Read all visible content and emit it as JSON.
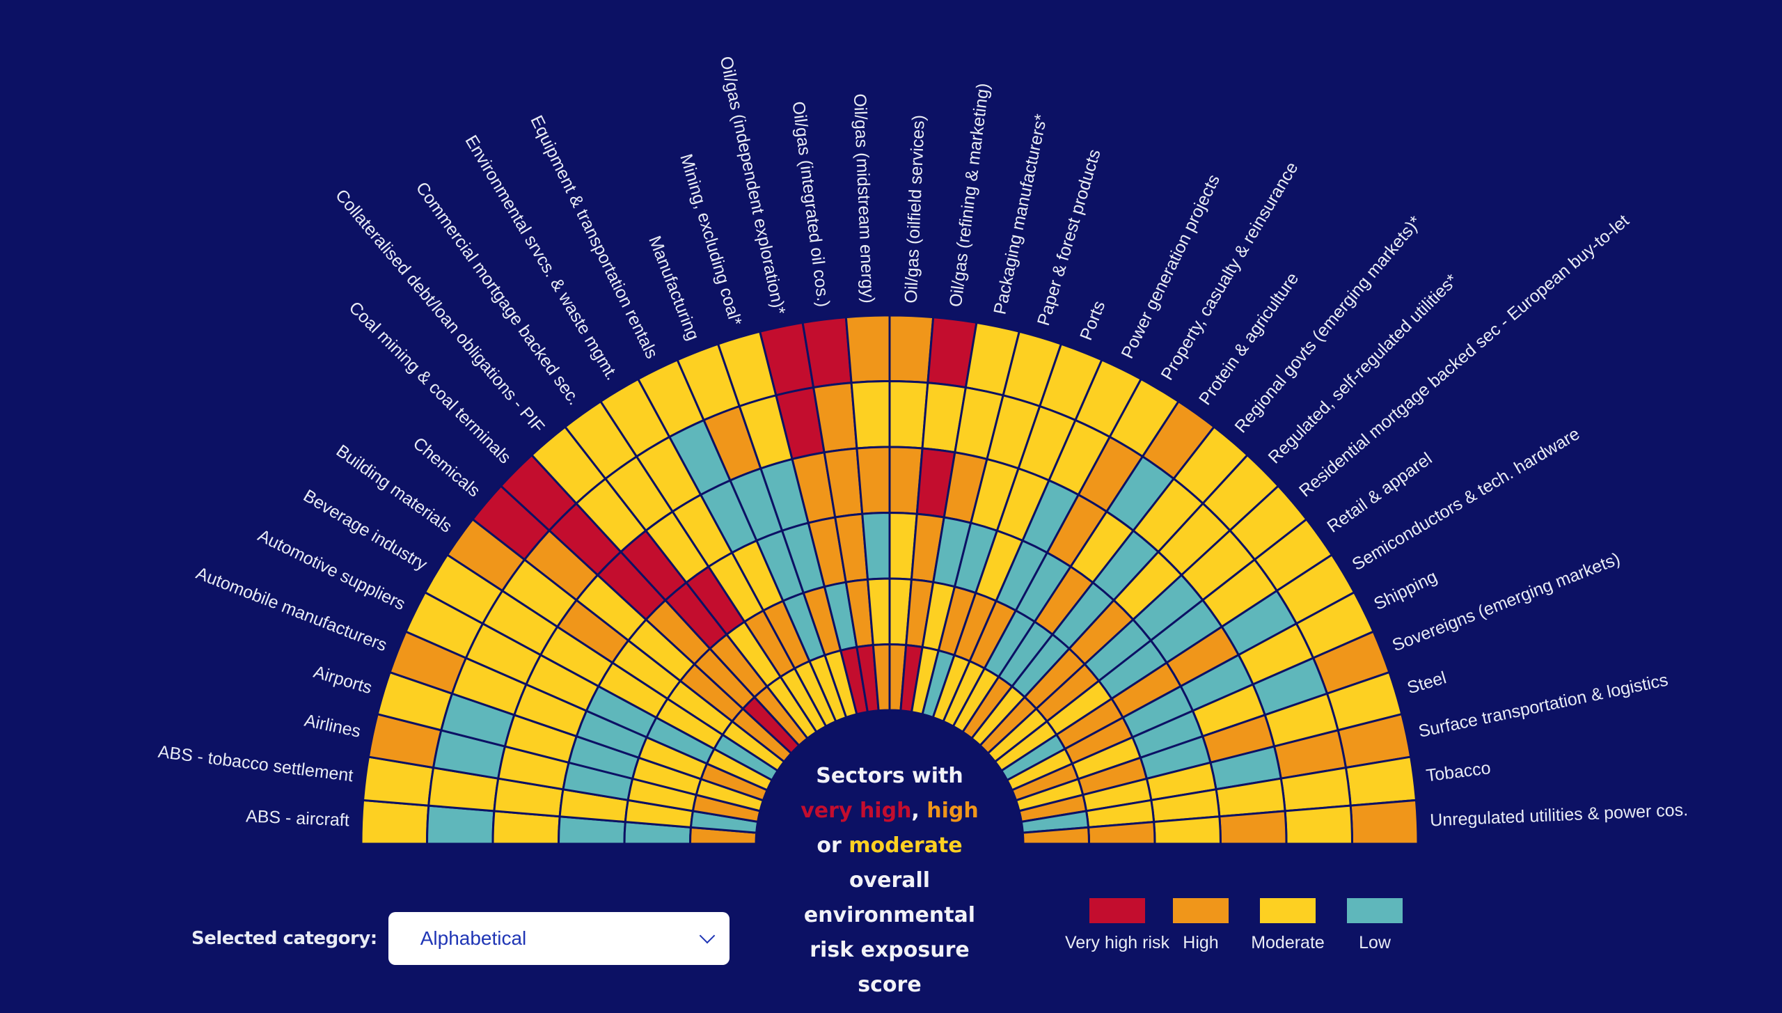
{
  "colors": {
    "background": "#0c1164",
    "very_high": "#c30d2e",
    "high": "#f0961a",
    "moderate": "#fdd022",
    "low": "#5fb7bb",
    "grid": "#0c1164"
  },
  "center_text": {
    "line1": "Sectors with",
    "very_high": "very high",
    "comma": ", ",
    "high": "high",
    "or": "or ",
    "moderate": "moderate",
    "line4": "overall",
    "line5": "environmental",
    "line6": "risk exposure",
    "line7": "score"
  },
  "control": {
    "label": "Selected category:",
    "selected": "Alphabetical"
  },
  "legend": [
    {
      "key": "very_high",
      "label": "Very high risk"
    },
    {
      "key": "high",
      "label": "High"
    },
    {
      "key": "moderate",
      "label": "Moderate"
    },
    {
      "key": "low",
      "label": "Low"
    }
  ],
  "chart_data": {
    "type": "heatmap",
    "layout": "radial semicircle",
    "title": "Sectors with very high, high or moderate overall environmental risk exposure score",
    "ring_order": "outer-to-inner",
    "ring_count": 6,
    "scale": {
      "R": "Very high risk",
      "O": "High",
      "Y": "Moderate",
      "T": "Low"
    },
    "sectors": [
      {
        "name": "ABS - aircraft",
        "rings": [
          "Y",
          "T",
          "Y",
          "T",
          "T",
          "O"
        ]
      },
      {
        "name": "ABS - tobacco settlement",
        "rings": [
          "Y",
          "Y",
          "Y",
          "Y",
          "Y",
          "T"
        ]
      },
      {
        "name": "Airlines",
        "rings": [
          "O",
          "T",
          "Y",
          "T",
          "Y",
          "O"
        ]
      },
      {
        "name": "Airports",
        "rings": [
          "Y",
          "T",
          "Y",
          "T",
          "Y",
          "Y"
        ]
      },
      {
        "name": "Automobile manufacturers",
        "rings": [
          "O",
          "Y",
          "Y",
          "T",
          "Y",
          "O"
        ]
      },
      {
        "name": "Automotive suppliers",
        "rings": [
          "Y",
          "Y",
          "Y",
          "T",
          "T",
          "Y"
        ]
      },
      {
        "name": "Beverage industry",
        "rings": [
          "Y",
          "Y",
          "Y",
          "Y",
          "Y",
          "T"
        ]
      },
      {
        "name": "Building materials",
        "rings": [
          "O",
          "Y",
          "O",
          "Y",
          "Y",
          "Y"
        ]
      },
      {
        "name": "Chemicals",
        "rings": [
          "R",
          "O",
          "Y",
          "Y",
          "O",
          "O"
        ]
      },
      {
        "name": "Coal mining & coal terminals",
        "rings": [
          "R",
          "R",
          "R",
          "O",
          "O",
          "R"
        ]
      },
      {
        "name": "Collateralised debt/loan obligations - PIF",
        "rings": [
          "Y",
          "Y",
          "R",
          "R",
          "O",
          "O"
        ]
      },
      {
        "name": "Commercial mortgage backed sec.",
        "rings": [
          "Y",
          "Y",
          "Y",
          "R",
          "Y",
          "Y"
        ]
      },
      {
        "name": "Environmental srvcs. & waste mgmt.",
        "rings": [
          "Y",
          "Y",
          "Y",
          "Y",
          "O",
          "Y"
        ]
      },
      {
        "name": "Equipment & transportation rentals",
        "rings": [
          "Y",
          "T",
          "T",
          "Y",
          "O",
          "Y"
        ]
      },
      {
        "name": "Manufacturing",
        "rings": [
          "Y",
          "O",
          "T",
          "T",
          "T",
          "Y"
        ]
      },
      {
        "name": "Mining, excluding coal*",
        "rings": [
          "Y",
          "Y",
          "T",
          "T",
          "O",
          "Y"
        ]
      },
      {
        "name": "Oil/gas (independent exploration)*",
        "rings": [
          "R",
          "R",
          "O",
          "O",
          "T",
          "R"
        ]
      },
      {
        "name": "Oil/gas (integrated oil cos.)",
        "rings": [
          "R",
          "O",
          "O",
          "O",
          "O",
          "R"
        ]
      },
      {
        "name": "Oil/gas (midstream energy)",
        "rings": [
          "O",
          "Y",
          "O",
          "T",
          "Y",
          "O"
        ]
      },
      {
        "name": "Oil/gas (oilfield services)",
        "rings": [
          "O",
          "Y",
          "O",
          "Y",
          "Y",
          "O"
        ]
      },
      {
        "name": "Oil/gas (refining & marketing)",
        "rings": [
          "R",
          "Y",
          "R",
          "O",
          "O",
          "R"
        ]
      },
      {
        "name": "Packaging manufacturers*",
        "rings": [
          "Y",
          "Y",
          "O",
          "T",
          "Y",
          "Y"
        ]
      },
      {
        "name": "Paper & forest products",
        "rings": [
          "Y",
          "Y",
          "Y",
          "T",
          "O",
          "T"
        ]
      },
      {
        "name": "Ports",
        "rings": [
          "Y",
          "Y",
          "Y",
          "Y",
          "O",
          "Y"
        ]
      },
      {
        "name": "Power generation projects",
        "rings": [
          "Y",
          "Y",
          "T",
          "T",
          "O",
          "Y"
        ]
      },
      {
        "name": "Property, casualty & reinsurance",
        "rings": [
          "Y",
          "O",
          "O",
          "T",
          "T",
          "Y"
        ]
      },
      {
        "name": "Protein & agriculture",
        "rings": [
          "O",
          "T",
          "Y",
          "O",
          "T",
          "O"
        ]
      },
      {
        "name": "Regional govts (emerging markets)*",
        "rings": [
          "Y",
          "Y",
          "T",
          "T",
          "T",
          "Y"
        ]
      },
      {
        "name": "Regulated, self-regulated utilities*",
        "rings": [
          "Y",
          "Y",
          "Y",
          "O",
          "O",
          "O"
        ]
      },
      {
        "name": "Residential mortgage backed sec - European buy-to-let",
        "rings": [
          "Y",
          "Y",
          "T",
          "T",
          "O",
          "Y"
        ]
      },
      {
        "name": "Retail & apparel",
        "rings": [
          "Y",
          "Y",
          "T",
          "T",
          "Y",
          "Y"
        ]
      },
      {
        "name": "Semiconductors & tech. hardware",
        "rings": [
          "Y",
          "T",
          "O",
          "O",
          "O",
          "T"
        ]
      },
      {
        "name": "Shipping",
        "rings": [
          "Y",
          "Y",
          "T",
          "T",
          "O",
          "Y"
        ]
      },
      {
        "name": "Sovereigns (emerging markets)",
        "rings": [
          "O",
          "T",
          "Y",
          "T",
          "Y",
          "O"
        ]
      },
      {
        "name": "Steel",
        "rings": [
          "Y",
          "Y",
          "O",
          "T",
          "O",
          "Y"
        ]
      },
      {
        "name": "Surface transportation & logistics",
        "rings": [
          "O",
          "O",
          "T",
          "Y",
          "Y",
          "O"
        ]
      },
      {
        "name": "Tobacco",
        "rings": [
          "Y",
          "Y",
          "Y",
          "Y",
          "Y",
          "T"
        ]
      },
      {
        "name": "Unregulated utilities & power cos.",
        "rings": [
          "O",
          "Y",
          "O",
          "Y",
          "O",
          "O"
        ]
      }
    ]
  }
}
